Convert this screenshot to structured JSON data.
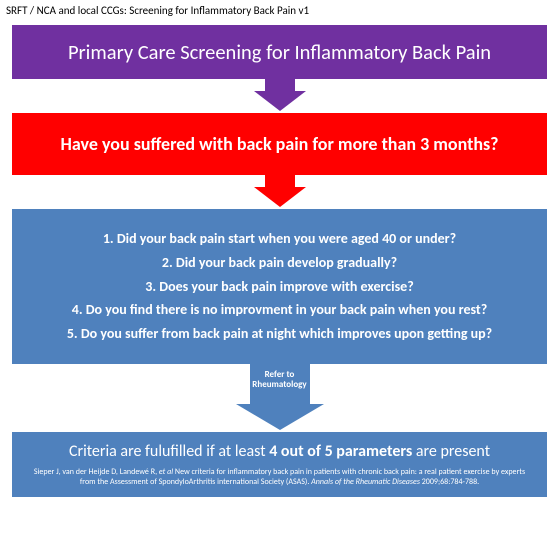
{
  "header": "SRFT / NCA and local CCGs: Screening for Inflammatory Back Pain v1",
  "colors": {
    "purple": "#7030a0",
    "red": "#ff0000",
    "blue": "#4f81bd",
    "white": "#ffffff",
    "black": "#000000"
  },
  "flow": {
    "title_box": {
      "text": "Primary Care Screening for Inflammatory Back Pain",
      "bg": "#7030a0"
    },
    "arrow1": {
      "color": "#7030a0"
    },
    "question_box": {
      "text": "Have you suffered with back pain for more than 3 months?",
      "bg": "#ff0000"
    },
    "arrow2": {
      "color": "#ff0000"
    },
    "criteria_questions": {
      "bg": "#4f81bd",
      "items": [
        "1. Did your back pain start when you were aged 40 or under?",
        "2. Did your back pain develop gradually?",
        "3. Does your back pain improve with exercise?",
        "4. Do you find there is no improvment in your back pain when you rest?",
        "5. Do  you suffer from back pain at night which improves upon getting up?"
      ]
    },
    "arrow3": {
      "color": "#4f81bd",
      "label_line1": "Refer to",
      "label_line2": "Rheumatology"
    },
    "result_box": {
      "bg": "#4f81bd",
      "prefix": "Criteria are fulufilled if at least ",
      "bold": "4 out of 5 parameters",
      "suffix": " are present",
      "citation_plain1": "Sieper J, van der Heijde D, Landewé R, ",
      "citation_ital1": "et al ",
      "citation_plain2": "New criteria for inflammatory back pain in patients with chronic back pain: a real patient exercise by experts from the Assessment of SpondyloArthritis international Society (ASAS). ",
      "citation_ital2": "Annals of the Rheumatic Diseases ",
      "citation_plain3": "2009;68:784-788."
    }
  }
}
